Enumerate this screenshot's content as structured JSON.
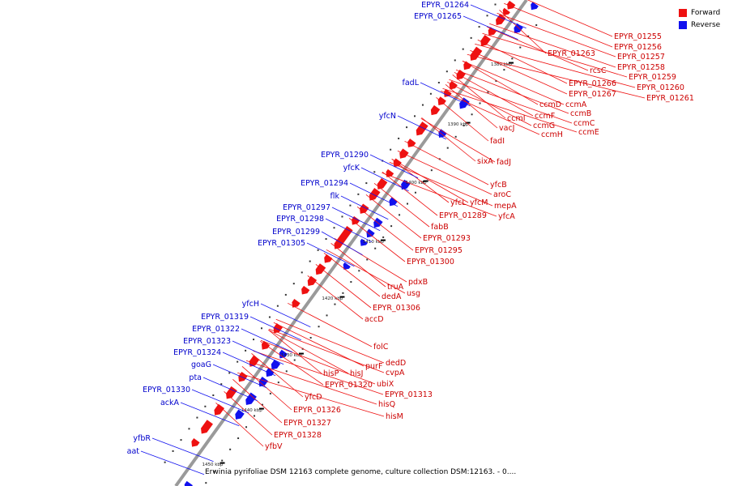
{
  "colors": {
    "forward": "#ee1111",
    "reverse": "#1111ee",
    "backbone": "#9a9a9a"
  },
  "legend": {
    "forward": "Forward",
    "reverse": "Reverse"
  },
  "caption": "Erwinia pyrifoliae DSM 12163 complete genome, culture collection DSM:12163. - 0....",
  "ticks": [
    "1380 kbp",
    "1390 kbp",
    "1400 kbp",
    "1410 kbp",
    "1420 kbp",
    "1430 kbp",
    "1440 kbp",
    "1450 kbp"
  ],
  "forward_labels": [
    "EPYR_01255",
    "EPYR_01256",
    "EPYR_01257",
    "EPYR_01258",
    "EPYR_01259",
    "EPYR_01260",
    "EPYR_01261",
    "EPYR_01263",
    "rcsC",
    "EPYR_01266",
    "EPYR_01267",
    "ccmA",
    "ccmB",
    "ccmC",
    "ccmD",
    "ccmE",
    "ccmF",
    "ccmG",
    "ccmH",
    "ccmI",
    "vacJ",
    "fadI",
    "fadJ",
    "sixA",
    "yfcB",
    "aroC",
    "mepA",
    "yfcA",
    "yfcL",
    "yfcM",
    "EPYR_01289",
    "fabB",
    "EPYR_01293",
    "EPYR_01295",
    "EPYR_01300",
    "pdxB",
    "truA",
    "usg",
    "dedA",
    "EPYR_01306",
    "accD",
    "folC",
    "dedD",
    "cvpA",
    "purF",
    "hisJ",
    "ubiX",
    "EPYR_01313",
    "hisQ",
    "hisM",
    "hisP",
    "EPYR_01320",
    "yfcD",
    "EPYR_01326",
    "EPYR_01327",
    "EPYR_01328",
    "yfbV"
  ],
  "reverse_labels": [
    "EPYR_01264",
    "EPYR_01265",
    "fadL",
    "yfcN",
    "EPYR_01290",
    "yfcK",
    "EPYR_01294",
    "flk",
    "EPYR_01297",
    "EPYR_01298",
    "EPYR_01299",
    "EPYR_01305",
    "yfcH",
    "EPYR_01319",
    "EPYR_01322",
    "EPYR_01323",
    "EPYR_01324",
    "goaG",
    "pta",
    "EPYR_01330",
    "ackA",
    "yfbR",
    "aat"
  ]
}
